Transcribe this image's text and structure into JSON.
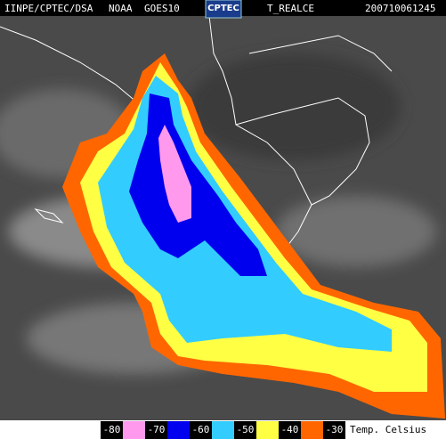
{
  "header": {
    "source": "IINPE/CPTEC/DSA",
    "agency": "NOAA",
    "satellite": "GOES10",
    "logo": "CPTEC",
    "product": "T_REALCE",
    "timestamp": "200710061245"
  },
  "legend": {
    "levels": [
      -80,
      -70,
      -60,
      -50,
      -40,
      -30
    ],
    "colors": [
      "#ff99ee",
      "#0000ee",
      "#33ccff",
      "#ffff44",
      "#ff6600"
    ],
    "unit": "Temp. Celsius"
  }
}
